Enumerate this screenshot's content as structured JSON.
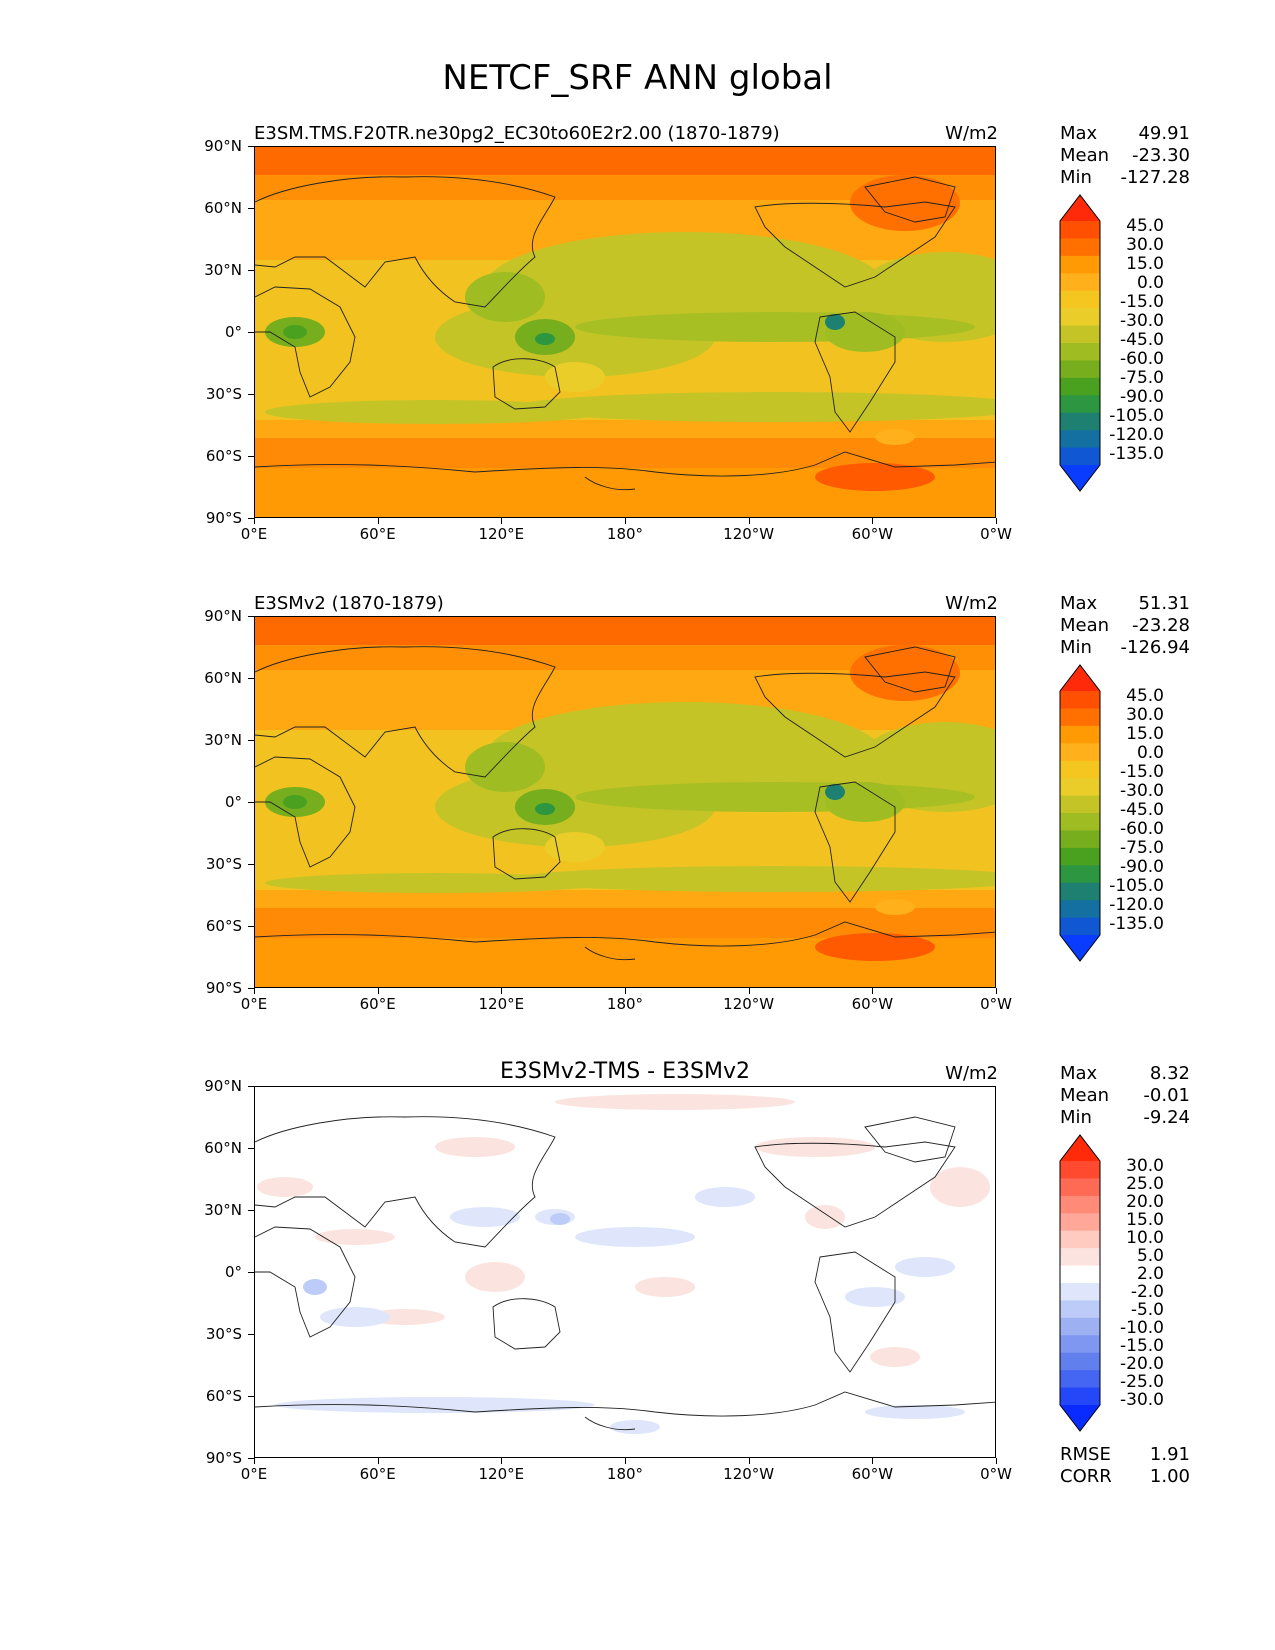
{
  "title": "NETCF_SRF ANN global",
  "axes": {
    "lat_ticks": [
      "90°N",
      "60°N",
      "30°N",
      "0°",
      "30°S",
      "60°S",
      "90°S"
    ],
    "lon_ticks": [
      "0°E",
      "60°E",
      "120°E",
      "180°",
      "120°W",
      "60°W",
      "0°W"
    ]
  },
  "panels": [
    {
      "title": "E3SM.TMS.F20TR.ne30pg2_EC30to60E2r2.00 (1870-1879)",
      "units": "W/m2",
      "stats": {
        "max_label": "Max",
        "max": "49.91",
        "mean_label": "Mean",
        "mean": "-23.30",
        "min_label": "Min",
        "min": "-127.28"
      },
      "colorbar_labels": [
        "45.0",
        "30.0",
        "15.0",
        "0.0",
        "-15.0",
        "-30.0",
        "-45.0",
        "-60.0",
        "-75.0",
        "-90.0",
        "-105.0",
        "-120.0",
        "-135.0"
      ]
    },
    {
      "title": "E3SMv2 (1870-1879)",
      "units": "W/m2",
      "stats": {
        "max_label": "Max",
        "max": "51.31",
        "mean_label": "Mean",
        "mean": "-23.28",
        "min_label": "Min",
        "min": "-126.94"
      },
      "colorbar_labels": [
        "45.0",
        "30.0",
        "15.0",
        "0.0",
        "-15.0",
        "-30.0",
        "-45.0",
        "-60.0",
        "-75.0",
        "-90.0",
        "-105.0",
        "-120.0",
        "-135.0"
      ]
    },
    {
      "title": "E3SMv2-TMS - E3SMv2",
      "units": "W/m2",
      "stats": {
        "max_label": "Max",
        "max": "8.32",
        "mean_label": "Mean",
        "mean": "-0.01",
        "min_label": "Min",
        "min": "-9.24"
      },
      "colorbar_labels": [
        "30.0",
        "25.0",
        "20.0",
        "15.0",
        "10.0",
        "5.0",
        "2.0",
        "-2.0",
        "-5.0",
        "-10.0",
        "-15.0",
        "-20.0",
        "-25.0",
        "-30.0"
      ],
      "footer": {
        "rmse_label": "RMSE",
        "rmse": "1.91",
        "corr_label": "CORR",
        "corr": "1.00"
      }
    }
  ],
  "colors": {
    "main_scale": [
      "#ff2a0a",
      "#ff4f00",
      "#ff7000",
      "#ff9a05",
      "#ffb01a",
      "#f5c520",
      "#ebcd2a",
      "#c4c427",
      "#9fbd22",
      "#76ae1e",
      "#49a11f",
      "#2c9640",
      "#1e8070",
      "#1470a0",
      "#0f58d2",
      "#0a3cff"
    ],
    "diff_scale": [
      "#ff2a0a",
      "#ff4a30",
      "#ff6a55",
      "#ff8a78",
      "#ffa89a",
      "#ffcabf",
      "#fbe4df",
      "#ffffff",
      "#dfe6fb",
      "#bccbf7",
      "#9cb0f2",
      "#7f97f0",
      "#6280ed",
      "#4566f2",
      "#2447f7",
      "#0a2bff"
    ]
  }
}
